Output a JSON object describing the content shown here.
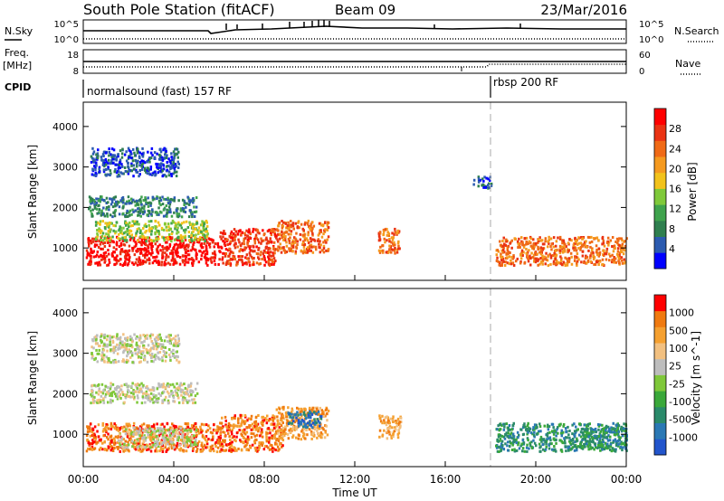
{
  "header": {
    "title": "South Pole Station (fitACF)",
    "beam": "Beam 09",
    "date": "23/Mar/2016"
  },
  "panels": {
    "noise": {
      "left_label": "N.Sky",
      "right_label": "N.Search",
      "left_ticks": [
        "10^5",
        "10^0"
      ],
      "right_ticks": [
        "10^5",
        "10^0"
      ]
    },
    "freq": {
      "left_label_1": "Freq.",
      "left_label_2": "[MHz]",
      "right_label": "Nave",
      "left_ticks": [
        "18",
        "8"
      ],
      "right_ticks": [
        "60",
        "0"
      ]
    },
    "cpid": {
      "label": "CPID",
      "modes": [
        {
          "text": "normalsound (fast) 157 RF",
          "start_hour": 0
        },
        {
          "text": "rbsp 200 RF",
          "start_hour": 18
        }
      ]
    }
  },
  "colors": {
    "power_scale": [
      "#0000ff",
      "#2c5bb0",
      "#2f7f4f",
      "#3fa34d",
      "#7fc93a",
      "#f2c21b",
      "#f59a1f",
      "#f06a16",
      "#ea3313",
      "#ff0000"
    ],
    "velocity_scale": [
      "#2255cc",
      "#2a78b4",
      "#2a8a6a",
      "#3aa83a",
      "#7fc83a",
      "#bdbdbd",
      "#f2c080",
      "#f5a030",
      "#f07a10",
      "#ff0000"
    ]
  },
  "chart_data": [
    {
      "type": "heatmap",
      "name": "power",
      "xlabel": "",
      "ylabel": "Slant Range [km]",
      "xlim": [
        0,
        24
      ],
      "ylim": [
        200,
        4600
      ],
      "yticks": [
        1000,
        2000,
        3000,
        4000
      ],
      "colorbar_label": "Power [dB]",
      "colorbar_ticks": [
        "28",
        "24",
        "20",
        "16",
        "12",
        "8",
        "4"
      ],
      "regions": [
        {
          "x": [
            0.1,
            6.0
          ],
          "y": [
            600,
            1300
          ],
          "level": 9
        },
        {
          "x": [
            0.5,
            5.5
          ],
          "y": [
            1200,
            1700
          ],
          "level": 4
        },
        {
          "x": [
            6.0,
            8.5
          ],
          "y": [
            600,
            1500
          ],
          "level": 8
        },
        {
          "x": [
            8.5,
            10.8
          ],
          "y": [
            900,
            1700
          ],
          "level": 7
        },
        {
          "x": [
            13.0,
            14.0
          ],
          "y": [
            900,
            1500
          ],
          "level": 7
        },
        {
          "x": [
            18.2,
            24.0
          ],
          "y": [
            600,
            1300
          ],
          "level": 7
        },
        {
          "x": [
            0.2,
            5.0
          ],
          "y": [
            1800,
            2300
          ],
          "level": 2
        },
        {
          "x": [
            0.3,
            4.2
          ],
          "y": [
            2800,
            3500
          ],
          "level": 1
        },
        {
          "x": [
            17.2,
            18.0
          ],
          "y": [
            2500,
            2800
          ],
          "level": 1
        }
      ]
    },
    {
      "type": "heatmap",
      "name": "velocity",
      "xlabel": "Time UT",
      "ylabel": "Slant Range [km]",
      "xlim": [
        0,
        24
      ],
      "ylim": [
        200,
        4600
      ],
      "yticks": [
        1000,
        2000,
        3000,
        4000
      ],
      "xticks": [
        "00:00",
        "04:00",
        "08:00",
        "12:00",
        "16:00",
        "20:00",
        "00:00"
      ],
      "colorbar_label": "Velocity [m s^-1]",
      "colorbar_ticks": [
        "1000",
        "500",
        "100",
        "25",
        "-25",
        "-100",
        "-500",
        "-1000"
      ],
      "regions": [
        {
          "x": [
            0.1,
            6.0
          ],
          "y": [
            600,
            1300
          ],
          "level": 8
        },
        {
          "x": [
            1.5,
            5.0
          ],
          "y": [
            700,
            1200
          ],
          "level": 5
        },
        {
          "x": [
            6.0,
            8.8
          ],
          "y": [
            600,
            1500
          ],
          "level": 8
        },
        {
          "x": [
            8.5,
            10.8
          ],
          "y": [
            900,
            1700
          ],
          "level": 7
        },
        {
          "x": [
            9.0,
            10.5
          ],
          "y": [
            1200,
            1600
          ],
          "level": 1
        },
        {
          "x": [
            13.0,
            14.0
          ],
          "y": [
            900,
            1500
          ],
          "level": 7
        },
        {
          "x": [
            18.2,
            24.0
          ],
          "y": [
            600,
            1300
          ],
          "level": 2
        },
        {
          "x": [
            22.0,
            24.0
          ],
          "y": [
            700,
            1200
          ],
          "level": 2
        },
        {
          "x": [
            0.2,
            5.0
          ],
          "y": [
            1800,
            2300
          ],
          "level": 5
        },
        {
          "x": [
            0.3,
            4.2
          ],
          "y": [
            2800,
            3500
          ],
          "level": 5
        }
      ]
    }
  ]
}
